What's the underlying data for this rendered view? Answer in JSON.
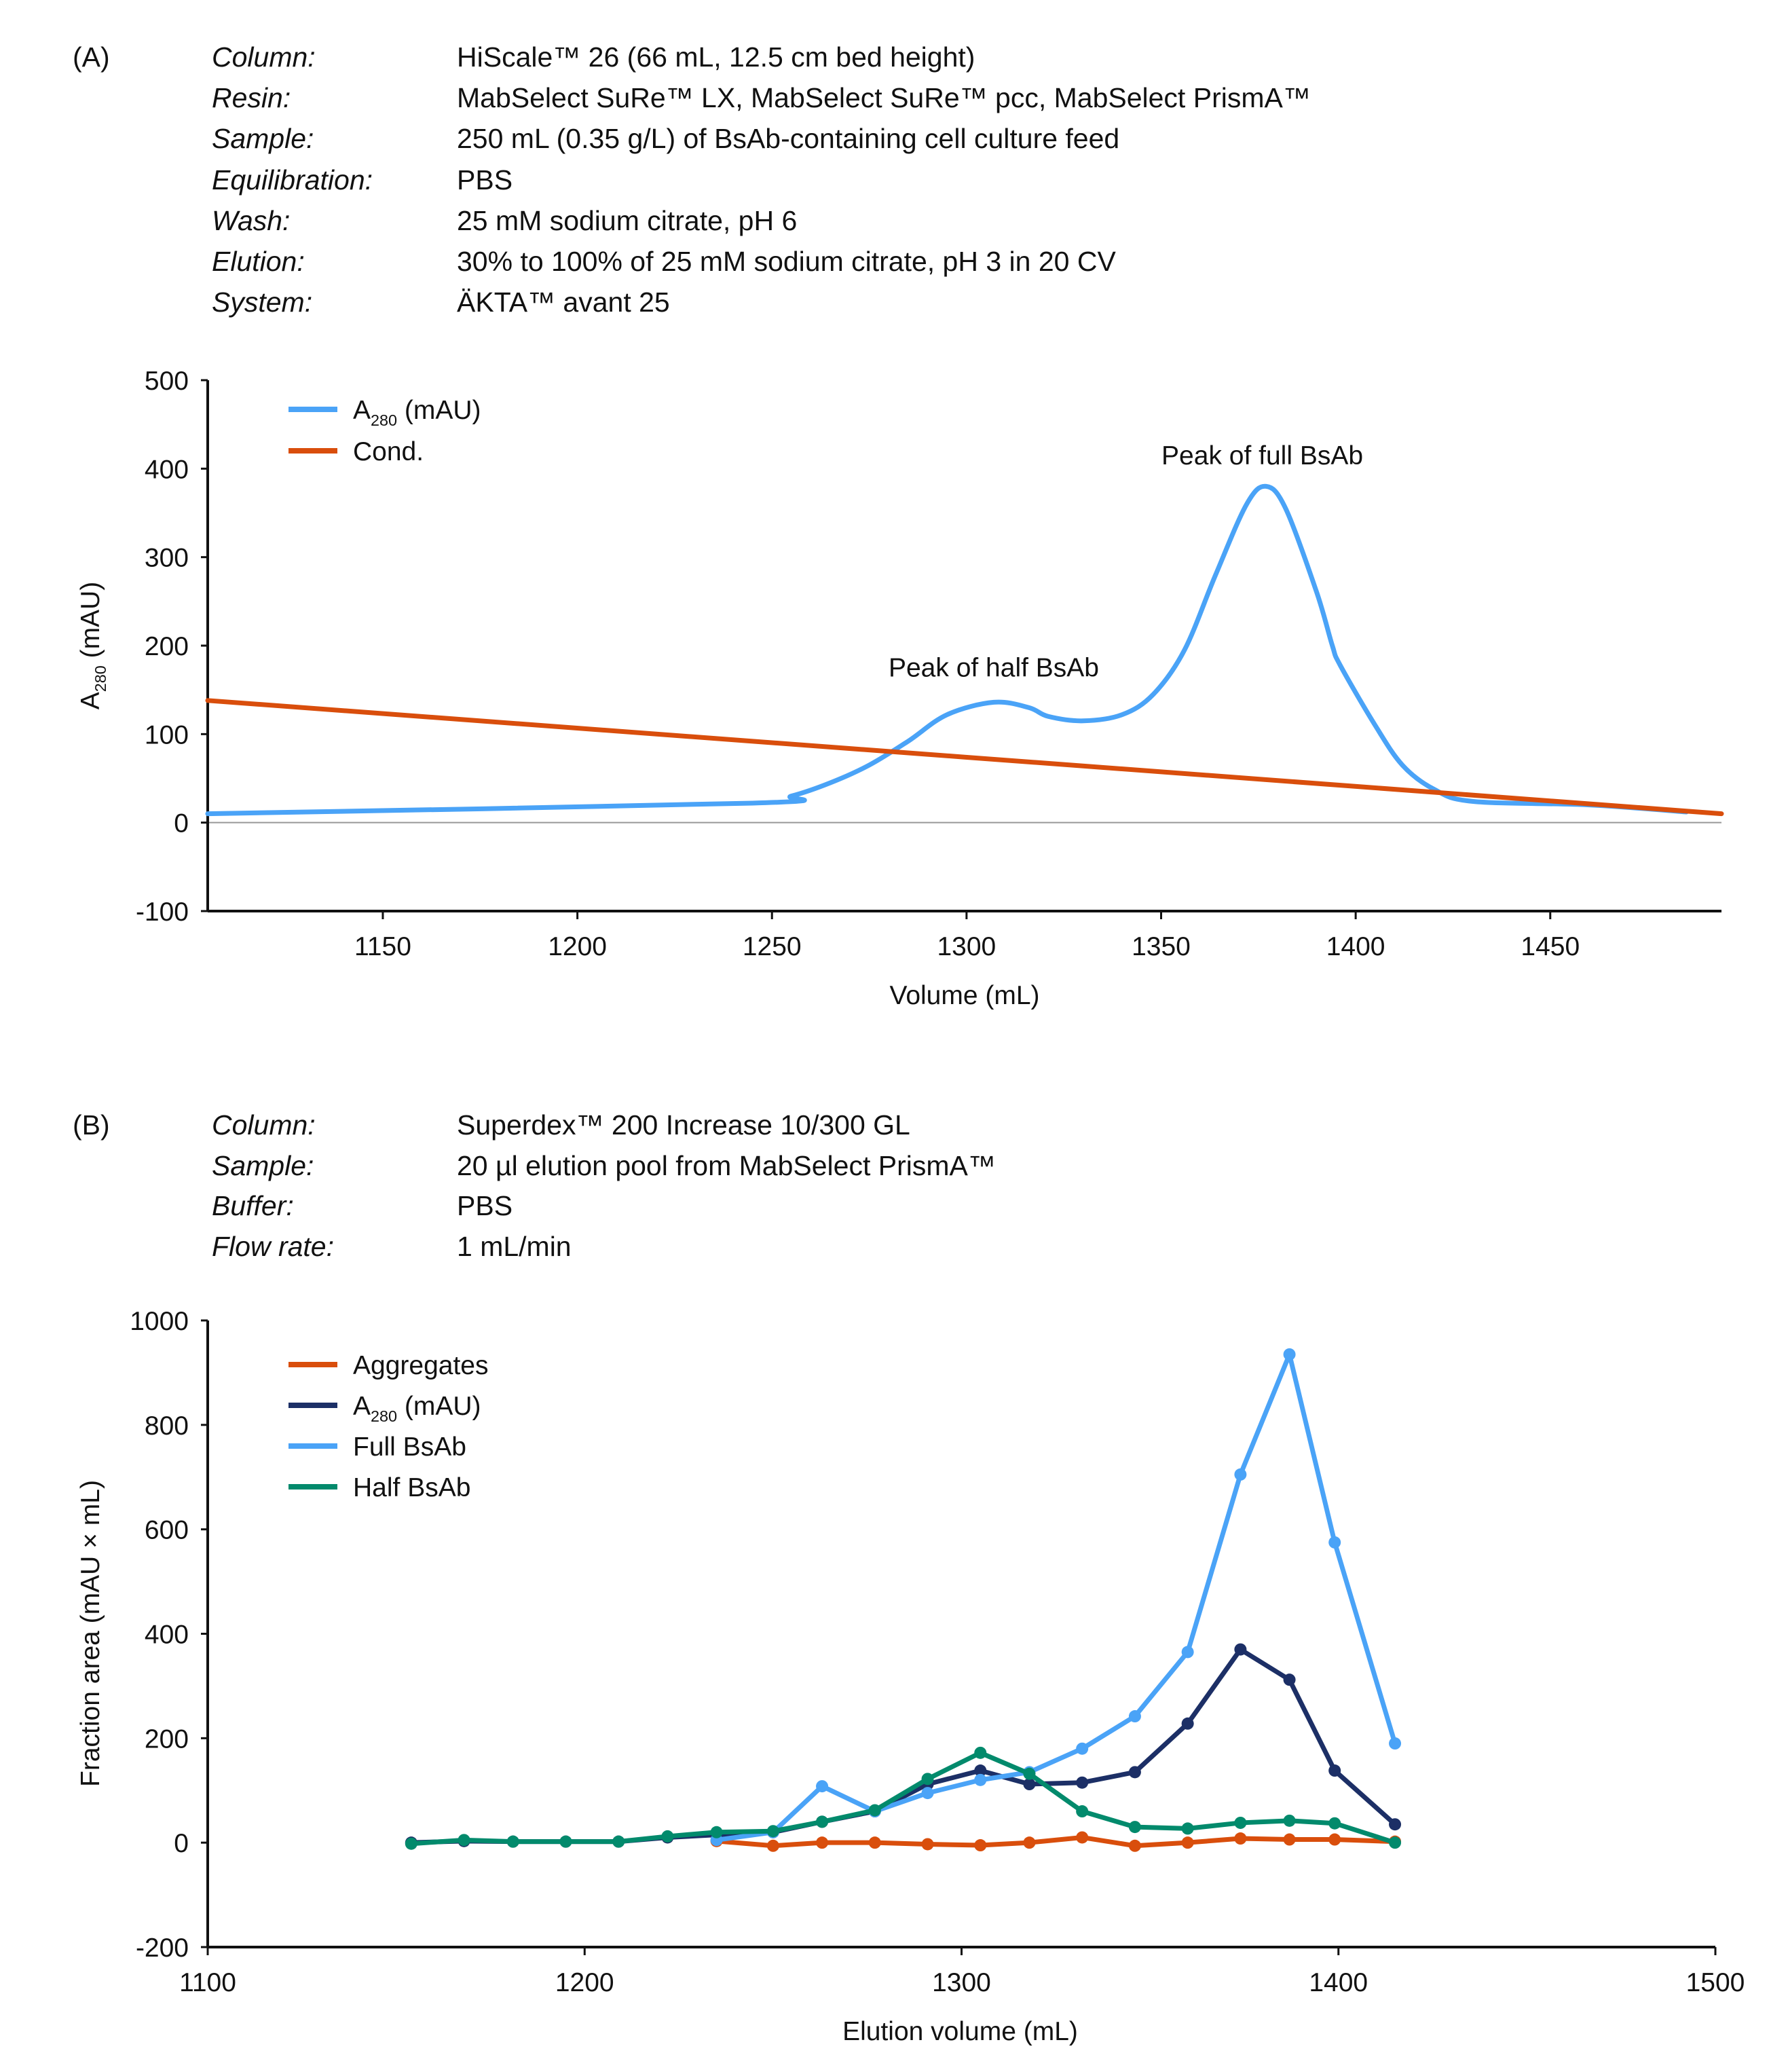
{
  "panel_a": {
    "tag": "(A)",
    "info": [
      {
        "label": "Column:",
        "value": "HiScale™ 26 (66 mL, 12.5 cm bed height)"
      },
      {
        "label": "Resin:",
        "value": "MabSelect SuRe™ LX, MabSelect SuRe™ pcc, MabSelect PrismA™"
      },
      {
        "label": "Sample:",
        "value": "250 mL (0.35 g/L) of BsAb-containing cell culture feed"
      },
      {
        "label": "Equilibration:",
        "value": "PBS"
      },
      {
        "label": "Wash:",
        "value": "25 mM sodium citrate, pH 6"
      },
      {
        "label": "Elution:",
        "value": "30% to 100% of 25 mM sodium citrate, pH 3 in 20 CV"
      },
      {
        "label": "System:",
        "value": "ÄKTA™ avant 25"
      }
    ]
  },
  "panel_b": {
    "tag": "(B)",
    "info": [
      {
        "label": "Column:",
        "value": "Superdex™ 200 Increase 10/300 GL"
      },
      {
        "label": "Sample:",
        "value": "20 µl elution pool from MabSelect PrismA™"
      },
      {
        "label": "Buffer:",
        "value": "PBS"
      },
      {
        "label": "Flow rate:",
        "value": "1 mL/min"
      }
    ]
  },
  "chart_data": [
    {
      "type": "line",
      "xlabel": "Volume (mL)",
      "ylabel": {
        "main": "A",
        "sub": "280",
        "rest": " (mAU)"
      },
      "xlim": [
        1105,
        1494
      ],
      "ylim": [
        -100,
        500
      ],
      "xticks": [
        1150,
        1200,
        1250,
        1300,
        1350,
        1400,
        1450
      ],
      "yticks": [
        -100,
        0,
        100,
        200,
        300,
        400,
        500
      ],
      "grid": false,
      "legend_position": "top-left",
      "series": [
        {
          "name": {
            "main": "A",
            "sub": "280",
            "rest": " (mAU)"
          },
          "color": "#4aa3f7",
          "x": [
            1105,
            1245,
            1255,
            1265,
            1275,
            1285,
            1295,
            1307,
            1316,
            1321,
            1330,
            1340,
            1348,
            1356,
            1364,
            1372,
            1377,
            1382,
            1390,
            1394,
            1396,
            1405,
            1412,
            1420,
            1430,
            1460,
            1485
          ],
          "y": [
            10,
            22,
            30,
            45,
            65,
            92,
            122,
            136,
            130,
            120,
            115,
            122,
            145,
            195,
            280,
            360,
            380,
            355,
            260,
            200,
            178,
            110,
            65,
            38,
            24,
            20,
            12
          ]
        },
        {
          "name": "Cond.",
          "color": "#d94e0c",
          "x": [
            1105,
            1494
          ],
          "y": [
            138,
            10
          ]
        }
      ],
      "annotations": [
        {
          "text": "Peak of half BsAb",
          "x": 1307,
          "y": 165
        },
        {
          "text": "Peak of full BsAb",
          "x": 1376,
          "y": 405
        }
      ]
    },
    {
      "type": "line",
      "xlabel": "Elution volume (mL)",
      "ylabel": "Fraction area (mAU × mL)",
      "xlim": [
        1100,
        1500
      ],
      "ylim": [
        -200,
        1000
      ],
      "xticks": [
        1100,
        1200,
        1300,
        1400,
        1500
      ],
      "yticks": [
        -200,
        0,
        200,
        400,
        600,
        800,
        1000
      ],
      "grid": false,
      "legend_position": "top-left",
      "series": [
        {
          "name": "Aggregates",
          "color": "#d94e0c",
          "x": [
            1235,
            1250,
            1263,
            1277,
            1291,
            1305,
            1318,
            1332,
            1346,
            1360,
            1374,
            1387,
            1399,
            1415
          ],
          "y": [
            3,
            -6,
            0,
            0,
            -3,
            -5,
            0,
            10,
            -6,
            0,
            8,
            6,
            6,
            2
          ]
        },
        {
          "name": {
            "main": "A",
            "sub": "280",
            "rest": " (mAU)"
          },
          "color": "#1c2f66",
          "x": [
            1154,
            1168,
            1181,
            1195,
            1209,
            1222,
            1235,
            1250,
            1263,
            1277,
            1291,
            1305,
            1318,
            1332,
            1346,
            1360,
            1374,
            1387,
            1399,
            1415
          ],
          "y": [
            0,
            3,
            2,
            2,
            2,
            10,
            15,
            20,
            40,
            60,
            112,
            138,
            112,
            115,
            135,
            228,
            370,
            312,
            138,
            35
          ]
        },
        {
          "name": "Full BsAb",
          "color": "#4aa3f7",
          "x": [
            1235,
            1250,
            1263,
            1277,
            1291,
            1305,
            1318,
            1332,
            1346,
            1360,
            1374,
            1387,
            1399,
            1415
          ],
          "y": [
            5,
            20,
            108,
            60,
            95,
            120,
            135,
            180,
            242,
            365,
            705,
            935,
            575,
            190
          ]
        },
        {
          "name": "Half BsAb",
          "color": "#028a6c",
          "x": [
            1154,
            1168,
            1181,
            1195,
            1209,
            1222,
            1235,
            1250,
            1263,
            1277,
            1291,
            1305,
            1318,
            1332,
            1346,
            1360,
            1374,
            1387,
            1399,
            1415
          ],
          "y": [
            -2,
            5,
            2,
            2,
            2,
            12,
            20,
            22,
            40,
            62,
            122,
            172,
            132,
            60,
            30,
            27,
            38,
            42,
            37,
            0
          ]
        }
      ]
    }
  ]
}
